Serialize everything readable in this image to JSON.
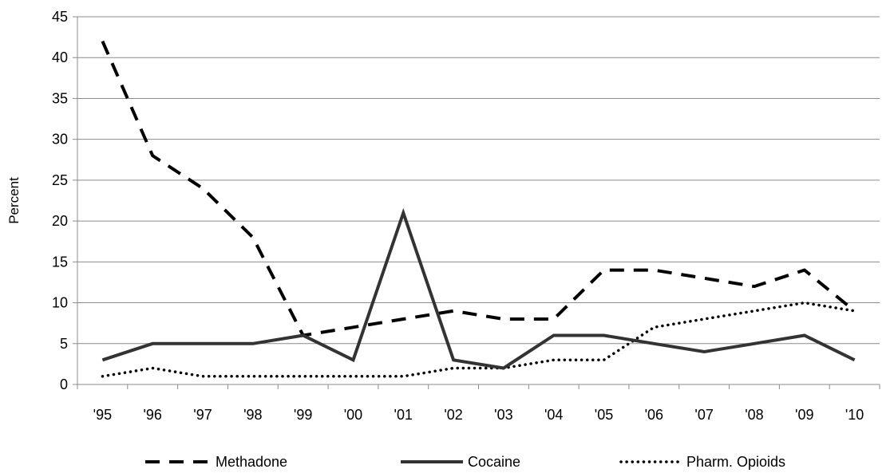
{
  "chart_data": {
    "type": "line",
    "title": "",
    "xlabel": "",
    "ylabel": "Percent",
    "ylim": [
      0,
      45
    ],
    "yticks": [
      0,
      5,
      10,
      15,
      20,
      25,
      30,
      35,
      40,
      45
    ],
    "categories": [
      "'95",
      "'96",
      "'97",
      "'98",
      "'99",
      "'00",
      "'01",
      "'02",
      "'03",
      "'04",
      "'05",
      "'06",
      "'07",
      "'08",
      "'09",
      "'10"
    ],
    "grid": true,
    "legend_position": "bottom",
    "series": [
      {
        "name": "Methadone",
        "style": "dashed",
        "color": "#000000",
        "values": [
          42,
          28,
          24,
          18,
          6,
          7,
          8,
          9,
          8,
          8,
          14,
          14,
          13,
          12,
          14,
          9
        ]
      },
      {
        "name": "Cocaine",
        "style": "solid",
        "color": "#333333",
        "values": [
          3,
          5,
          5,
          5,
          6,
          3,
          21,
          3,
          2,
          6,
          6,
          5,
          4,
          5,
          6,
          3
        ]
      },
      {
        "name": "Pharm. Opioids",
        "style": "dotted",
        "color": "#000000",
        "values": [
          1,
          2,
          1,
          1,
          1,
          1,
          1,
          2,
          2,
          3,
          3,
          7,
          8,
          9,
          10,
          9
        ]
      }
    ]
  }
}
